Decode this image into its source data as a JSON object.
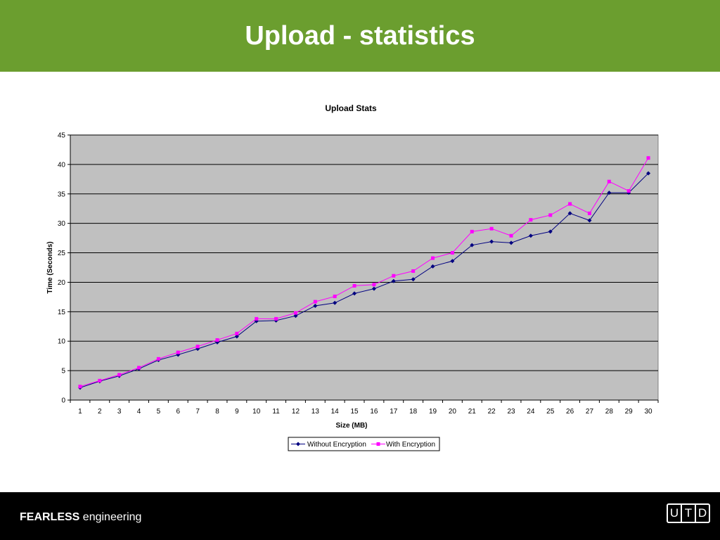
{
  "slide": {
    "title": "Upload - statistics"
  },
  "footer": {
    "brand_bold": "FEARLESS",
    "brand_rest": "engineering",
    "logo_letters": [
      "U",
      "T",
      "D"
    ]
  },
  "colors": {
    "header_bg": "#6b9e2f",
    "plot_bg": "#c0c0c0",
    "series_1": "#000080",
    "series_2": "#ff00ff"
  },
  "chart_data": {
    "type": "line",
    "title": "Upload Stats",
    "xlabel": "Size (MB)",
    "ylabel": "Time (Seconds)",
    "categories": [
      "1",
      "2",
      "3",
      "4",
      "5",
      "6",
      "7",
      "8",
      "9",
      "10",
      "11",
      "12",
      "13",
      "14",
      "15",
      "16",
      "17",
      "18",
      "19",
      "20",
      "21",
      "22",
      "23",
      "24",
      "25",
      "26",
      "27",
      "28",
      "29",
      "30"
    ],
    "ylim": [
      0,
      45
    ],
    "yticks": [
      0,
      5,
      10,
      15,
      20,
      25,
      30,
      35,
      40,
      45
    ],
    "grid": true,
    "legend_position": "bottom",
    "series": [
      {
        "name": "Without Encryption",
        "marker": "diamond",
        "values": [
          2.1,
          3.2,
          4.1,
          5.3,
          6.8,
          7.7,
          8.7,
          9.8,
          10.8,
          13.4,
          13.5,
          14.3,
          16.0,
          16.5,
          18.1,
          18.9,
          20.2,
          20.5,
          22.7,
          23.6,
          26.3,
          26.9,
          26.7,
          27.9,
          28.6,
          31.7,
          30.5,
          35.2,
          35.2,
          38.5
        ]
      },
      {
        "name": "With Encryption",
        "marker": "square",
        "values": [
          2.3,
          3.3,
          4.3,
          5.5,
          7.0,
          8.1,
          9.1,
          10.2,
          11.3,
          13.8,
          13.8,
          14.8,
          16.7,
          17.6,
          19.4,
          19.6,
          21.1,
          21.9,
          24.1,
          25.0,
          28.6,
          29.1,
          27.9,
          30.6,
          31.4,
          33.3,
          31.7,
          37.1,
          35.5,
          41.1
        ]
      }
    ]
  }
}
